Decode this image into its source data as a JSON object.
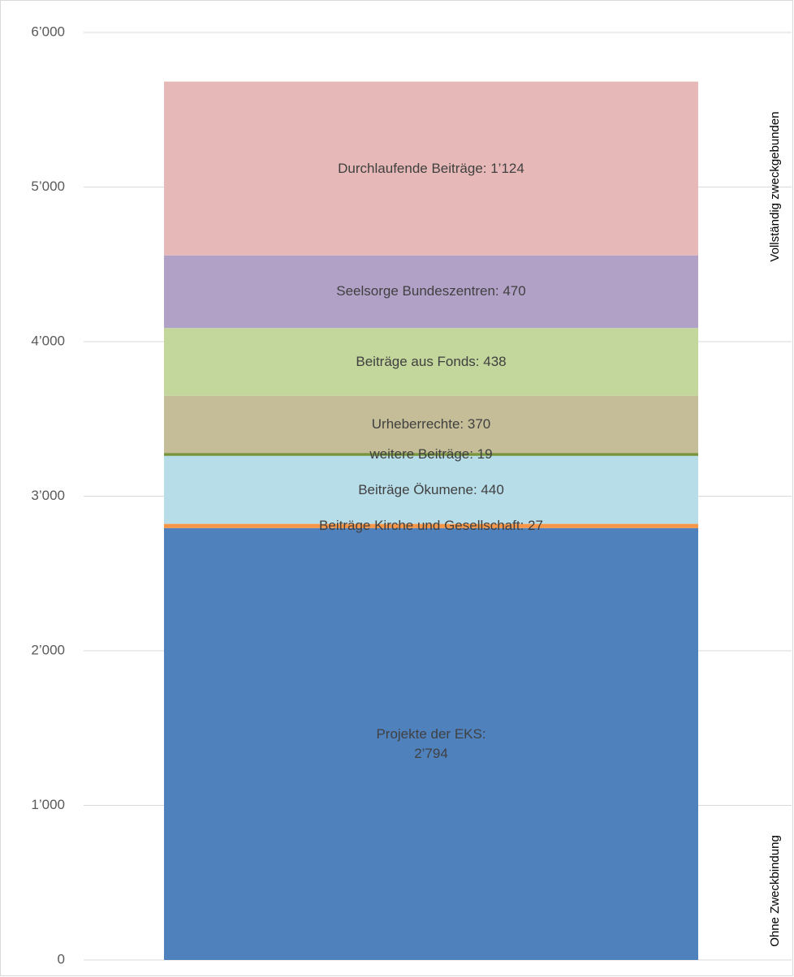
{
  "chart_data": {
    "type": "stacked_bar",
    "ylim": [
      0,
      6000
    ],
    "yticks": [
      0,
      {
        "value": 1000,
        "label": "1’000"
      },
      {
        "value": 2000,
        "label": "2’000"
      },
      {
        "value": 3000,
        "label": "3’000"
      },
      {
        "value": 4000,
        "label": "4’000"
      },
      {
        "value": 5000,
        "label": "5’000"
      },
      {
        "value": 6000,
        "label": "6’000"
      }
    ],
    "grid": true,
    "series": [
      {
        "color": "#4f81bd",
        "values": [
          2794
        ],
        "value_labels": [
          "Projekte der EKS:\n2’794"
        ]
      },
      {
        "color": "#f79646",
        "values": [
          27
        ],
        "value_labels": [
          "Beiträge Kirche und Gesellschaft: 27"
        ]
      },
      {
        "color": "#b7dde8",
        "values": [
          440
        ],
        "value_labels": [
          "Beiträge Ökumene: 440"
        ]
      },
      {
        "color": "#77933c",
        "values": [
          19
        ],
        "value_labels": [
          "weitere Beiträge: 19"
        ]
      },
      {
        "color": "#c4bd97",
        "values": [
          370
        ],
        "value_labels": [
          "Urheberrechte: 370"
        ]
      },
      {
        "color": "#c3d69b",
        "values": [
          438
        ],
        "value_labels": [
          "Beiträge aus Fonds: 438"
        ]
      },
      {
        "color": "#b2a1c7",
        "values": [
          470
        ],
        "value_labels": [
          "Seelsorge Bundeszentren: 470"
        ]
      },
      {
        "color": "#e6b9b8",
        "values": [
          1124
        ],
        "value_labels": [
          "Durchlaufende Beiträge: 1’124"
        ]
      }
    ],
    "annotations": [
      "Vollständig zweckgebunden",
      "Ohne Zweckbindung"
    ]
  }
}
